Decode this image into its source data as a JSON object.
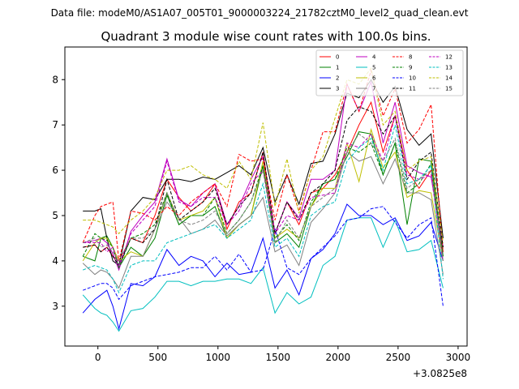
{
  "chart_data": {
    "type": "line",
    "suptitle": "Data file: modeM0/AS1A07_005T01_9000003224_21782cztM0_level2_quad_clean.evt",
    "title": "Quadrant 3 module wise count rates with 100.0s bins.",
    "xlabel": "",
    "ylabel": "",
    "x_offset_label": "+3.0825e8",
    "xlim": [
      -275,
      3075
    ],
    "ylim": [
      2.12,
      8.72
    ],
    "x_ticks": [
      0,
      500,
      1000,
      1500,
      2000,
      2500,
      3000
    ],
    "y_ticks": [
      3,
      4,
      5,
      6,
      7,
      8
    ],
    "x_tick_labels": [
      "0",
      "500",
      "1000",
      "1500",
      "2000",
      "2500",
      "3000"
    ],
    "y_tick_labels": [
      "3",
      "4",
      "5",
      "6",
      "7",
      "8"
    ],
    "grid": false,
    "legend": {
      "position": "top-right",
      "columns": 4
    },
    "x": [
      -125,
      -25,
      25,
      75,
      125,
      175,
      275,
      375,
      475,
      575,
      675,
      775,
      875,
      975,
      1075,
      1175,
      1275,
      1375,
      1475,
      1575,
      1675,
      1775,
      1875,
      1975,
      2075,
      2175,
      2275,
      2375,
      2475,
      2575,
      2675,
      2775,
      2875
    ],
    "series": [
      {
        "name": "0",
        "color": "#ff0000",
        "dash": "solid",
        "values": [
          4.3,
          4.35,
          4.2,
          4.3,
          4.1,
          4.0,
          4.5,
          4.4,
          5.0,
          5.8,
          5.4,
          5.1,
          5.3,
          5.7,
          4.7,
          5.3,
          5.5,
          6.4,
          4.6,
          5.3,
          4.8,
          5.5,
          5.6,
          5.9,
          6.4,
          7.0,
          7.5,
          6.4,
          7.2,
          6.0,
          5.6,
          6.0,
          4.2
        ]
      },
      {
        "name": "1",
        "color": "#008000",
        "dash": "solid",
        "values": [
          4.1,
          4.0,
          4.5,
          4.55,
          4.3,
          3.85,
          4.3,
          4.1,
          4.5,
          5.45,
          4.8,
          5.0,
          5.0,
          5.2,
          4.5,
          4.8,
          5.0,
          6.1,
          4.4,
          4.6,
          4.3,
          5.2,
          5.7,
          5.8,
          6.3,
          6.85,
          6.8,
          5.9,
          6.6,
          4.8,
          6.25,
          6.2,
          4.1
        ]
      },
      {
        "name": "2",
        "color": "#0000ff",
        "dash": "solid",
        "values": [
          2.85,
          3.15,
          3.25,
          3.35,
          3.0,
          2.5,
          3.5,
          3.45,
          3.65,
          4.25,
          3.9,
          4.1,
          4.0,
          3.65,
          3.95,
          3.7,
          3.75,
          4.5,
          3.4,
          3.8,
          3.25,
          4.05,
          4.25,
          4.6,
          5.25,
          5.0,
          5.0,
          4.8,
          4.95,
          4.45,
          4.55,
          4.85,
          4.0
        ]
      },
      {
        "name": "3",
        "color": "#000000",
        "dash": "solid",
        "values": [
          5.1,
          5.1,
          5.15,
          4.5,
          4.0,
          3.9,
          5.1,
          5.4,
          5.35,
          5.8,
          5.8,
          5.75,
          5.85,
          5.8,
          5.95,
          6.1,
          5.9,
          6.5,
          5.3,
          5.9,
          5.25,
          6.15,
          6.2,
          6.8,
          7.7,
          7.6,
          8.0,
          7.5,
          7.85,
          6.9,
          6.55,
          6.8,
          4.5
        ]
      },
      {
        "name": "4",
        "color": "#bf00bf",
        "dash": "solid",
        "values": [
          4.4,
          4.45,
          4.5,
          4.4,
          4.15,
          3.8,
          4.65,
          5.0,
          5.3,
          6.25,
          5.35,
          5.2,
          5.5,
          5.7,
          4.8,
          5.2,
          5.8,
          6.3,
          4.6,
          5.3,
          4.95,
          5.8,
          5.8,
          6.0,
          7.9,
          7.3,
          7.95,
          6.6,
          7.5,
          6.1,
          5.95,
          5.85,
          4.3
        ]
      },
      {
        "name": "5",
        "color": "#00bfbf",
        "dash": "solid",
        "values": [
          3.25,
          2.95,
          2.85,
          2.8,
          2.65,
          2.45,
          2.9,
          2.95,
          3.2,
          3.55,
          3.55,
          3.45,
          3.55,
          3.55,
          3.6,
          3.6,
          3.5,
          3.85,
          2.85,
          3.3,
          3.05,
          3.2,
          3.9,
          4.1,
          4.9,
          4.95,
          4.95,
          4.3,
          4.9,
          4.2,
          4.25,
          4.45,
          3.4
        ]
      },
      {
        "name": "6",
        "color": "#bfbf00",
        "dash": "solid",
        "values": [
          4.0,
          4.4,
          4.5,
          4.5,
          4.3,
          4.0,
          4.2,
          4.1,
          4.7,
          5.5,
          4.9,
          5.0,
          5.1,
          5.4,
          4.5,
          4.8,
          5.0,
          6.2,
          4.5,
          4.7,
          4.5,
          5.2,
          5.6,
          5.6,
          6.6,
          5.75,
          6.9,
          6.05,
          6.4,
          5.4,
          5.55,
          5.5,
          4.0
        ]
      },
      {
        "name": "7",
        "color": "#808080",
        "dash": "solid",
        "values": [
          3.95,
          3.7,
          3.8,
          3.75,
          3.6,
          3.4,
          4.1,
          4.1,
          4.7,
          5.3,
          4.95,
          4.6,
          4.7,
          4.9,
          4.55,
          4.8,
          5.0,
          5.4,
          4.2,
          4.35,
          3.9,
          4.85,
          5.15,
          5.5,
          6.4,
          6.2,
          6.3,
          5.7,
          6.25,
          5.5,
          5.5,
          5.35,
          3.7
        ]
      },
      {
        "name": "8",
        "color": "#ff0000",
        "dash": "dashed",
        "values": [
          4.4,
          5.0,
          5.2,
          5.25,
          5.3,
          4.0,
          5.1,
          5.05,
          4.9,
          5.2,
          5.0,
          5.3,
          5.5,
          5.7,
          5.2,
          6.35,
          6.2,
          6.25,
          4.9,
          5.9,
          5.1,
          6.0,
          6.85,
          6.85,
          7.9,
          7.3,
          8.2,
          7.2,
          7.8,
          6.6,
          6.9,
          7.45,
          4.2
        ]
      },
      {
        "name": "9",
        "color": "#008000",
        "dash": "dashed",
        "values": [
          4.1,
          4.6,
          4.5,
          4.45,
          4.3,
          3.85,
          4.5,
          4.6,
          4.8,
          5.5,
          4.8,
          5.0,
          5.0,
          5.4,
          4.6,
          4.9,
          5.3,
          6.1,
          4.5,
          4.8,
          4.45,
          5.3,
          5.7,
          5.8,
          6.5,
          6.4,
          6.6,
          5.9,
          6.6,
          5.5,
          5.7,
          6.15,
          4.1
        ]
      },
      {
        "name": "10",
        "color": "#0000ff",
        "dash": "dashed",
        "values": [
          3.35,
          3.45,
          3.5,
          3.5,
          3.4,
          3.15,
          3.45,
          3.55,
          3.65,
          3.7,
          3.75,
          3.85,
          3.85,
          4.1,
          3.8,
          4.15,
          3.75,
          3.8,
          4.7,
          3.85,
          3.7,
          4.05,
          4.3,
          4.55,
          4.9,
          4.95,
          5.15,
          5.2,
          4.85,
          4.5,
          4.8,
          4.95,
          3.0
        ]
      },
      {
        "name": "11",
        "color": "#000000",
        "dash": "dashed",
        "values": [
          4.3,
          4.35,
          4.2,
          4.3,
          4.1,
          3.9,
          4.5,
          4.4,
          4.7,
          5.8,
          4.9,
          5.1,
          5.3,
          5.6,
          4.8,
          5.2,
          5.5,
          6.4,
          4.6,
          5.3,
          4.9,
          5.5,
          5.7,
          6.0,
          7.1,
          7.4,
          7.3,
          6.8,
          7.2,
          5.8,
          6.2,
          6.4,
          4.3
        ]
      },
      {
        "name": "12",
        "color": "#bf00bf",
        "dash": "dashed",
        "values": [
          4.4,
          4.4,
          4.4,
          4.2,
          4.3,
          3.9,
          4.6,
          4.9,
          5.2,
          6.2,
          5.3,
          5.2,
          5.4,
          5.4,
          4.8,
          5.1,
          5.7,
          6.0,
          4.6,
          5.0,
          4.9,
          5.4,
          5.45,
          5.5,
          6.6,
          6.5,
          6.8,
          6.2,
          7.2,
          5.9,
          5.8,
          5.9,
          4.0
        ]
      },
      {
        "name": "13",
        "color": "#00bfbf",
        "dash": "dashed",
        "values": [
          3.8,
          3.9,
          3.85,
          3.8,
          3.6,
          3.3,
          3.9,
          4.0,
          4.0,
          4.4,
          4.5,
          4.6,
          4.7,
          4.8,
          4.5,
          4.7,
          4.9,
          5.7,
          4.3,
          4.5,
          4.1,
          5.0,
          5.2,
          5.3,
          6.2,
          6.5,
          6.7,
          6.0,
          7.0,
          5.7,
          5.8,
          6.1,
          3.6
        ]
      },
      {
        "name": "14",
        "color": "#bfbf00",
        "dash": "dashed",
        "values": [
          4.9,
          4.9,
          4.85,
          4.8,
          4.75,
          4.6,
          4.9,
          5.1,
          5.4,
          6.0,
          6.0,
          6.1,
          5.9,
          5.8,
          5.6,
          6.2,
          5.8,
          7.05,
          5.2,
          6.25,
          5.05,
          6.0,
          6.3,
          7.15,
          8.0,
          7.9,
          8.25,
          7.0,
          7.3,
          6.0,
          6.2,
          6.3,
          4.4
        ]
      },
      {
        "name": "15",
        "color": "#808080",
        "dash": "dashed",
        "values": [
          4.4,
          4.5,
          4.3,
          4.35,
          4.2,
          4.0,
          4.5,
          4.5,
          4.7,
          5.5,
          4.9,
          4.8,
          4.9,
          5.1,
          4.6,
          4.9,
          5.3,
          6.0,
          4.4,
          4.9,
          4.5,
          5.2,
          5.4,
          5.6,
          6.4,
          6.8,
          6.6,
          6.2,
          6.7,
          5.6,
          5.8,
          6.0,
          4.0
        ]
      }
    ]
  }
}
